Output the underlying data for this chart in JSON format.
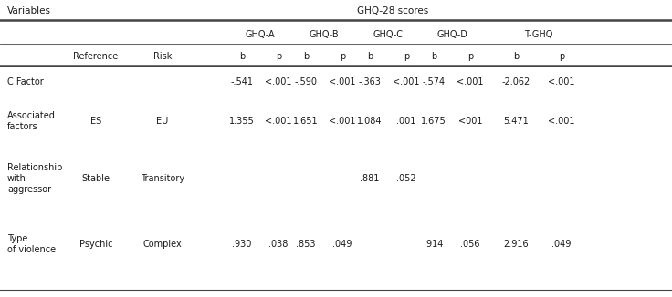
{
  "title_left": "Variables",
  "title_right": "GHQ-28 scores",
  "col_groups": [
    "GHQ-A",
    "GHQ-B",
    "GHQ-C",
    "GHQ-D",
    "T-GHQ"
  ],
  "rows": [
    {
      "variable": "C Factor",
      "reference": "",
      "risk": "",
      "ghqa_b": "-.541",
      "ghqa_p": "<.001",
      "ghqb_b": "-.590",
      "ghqb_p": "<.001",
      "ghqc_b": "-.363",
      "ghqc_p": "<.001",
      "ghqd_b": "-.574",
      "ghqd_p": "<.001",
      "tghq_b": "-2.062",
      "tghq_p": "<.001"
    },
    {
      "variable": "Associated\nfactors",
      "reference": "ES",
      "risk": "EU",
      "ghqa_b": "1.355",
      "ghqa_p": "<.001",
      "ghqb_b": "1.651",
      "ghqb_p": "<.001",
      "ghqc_b": "1.084",
      "ghqc_p": ".001",
      "ghqd_b": "1.675",
      "ghqd_p": "<001",
      "tghq_b": "5.471",
      "tghq_p": "<.001"
    },
    {
      "variable": "Relationship\nwith\naggressor",
      "reference": "Stable",
      "risk": "Transitory",
      "ghqa_b": "",
      "ghqa_p": "",
      "ghqb_b": "",
      "ghqb_p": "",
      "ghqc_b": ".881",
      "ghqc_p": ".052",
      "ghqd_b": "",
      "ghqd_p": "",
      "tghq_b": "",
      "tghq_p": ""
    },
    {
      "variable": "Type\nof violence",
      "reference": "Psychic",
      "risk": "Complex",
      "ghqa_b": ".930",
      "ghqa_p": ".038",
      "ghqb_b": ".853",
      "ghqb_p": ".049",
      "ghqc_b": "",
      "ghqc_p": "",
      "ghqd_b": ".914",
      "ghqd_p": ".056",
      "tghq_b": "2.916",
      "tghq_p": ".049"
    }
  ],
  "background_color": "#ffffff",
  "text_color": "#1a1a1a",
  "line_color": "#444444",
  "font_size": 7.0,
  "header_font_size": 7.5
}
